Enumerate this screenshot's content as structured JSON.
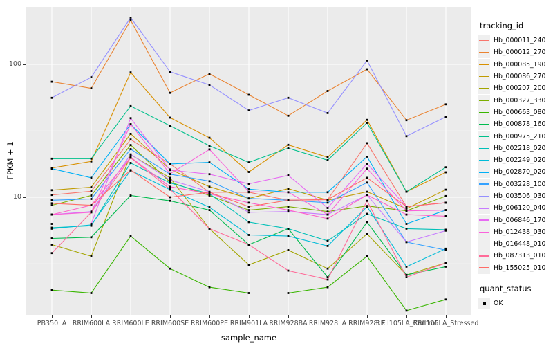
{
  "figure": {
    "background": "#FFFFFF",
    "panel_background": "#EBEBEB",
    "grid_color": "#FFFFFF",
    "tick_label_color": "#4D4D4D",
    "point_color": "#000000"
  },
  "chart_data": {
    "type": "line",
    "title": "",
    "xlabel": "sample_name",
    "ylabel": "FPKM + 1",
    "y_scale": "log10",
    "ylim": [
      1.3,
      270
    ],
    "grid": true,
    "legend_position": "right",
    "y_ticks": [
      {
        "label": "100",
        "value": 100
      },
      {
        "label": "10",
        "value": 10
      }
    ],
    "y_minor_breaks": [
      31.6,
      3.16
    ],
    "categories": [
      "PB350LA",
      "RRIM600LA",
      "RRIM600LE",
      "RRIM600SE",
      "RRIM600PE",
      "RRIM901LA",
      "RRIM928BA",
      "RRIM928LA",
      "RRIM928LE",
      "RRII105LA_Control",
      "RRII105LA_Stressed"
    ],
    "series": [
      {
        "name": "Hb_000011_240",
        "color": "#F8766D",
        "values": [
          10.4,
          11.1,
          27.2,
          17.8,
          10.9,
          10.9,
          9.5,
          9.6,
          25.5,
          8.5,
          9.1
        ]
      },
      {
        "name": "Hb_000012_270",
        "color": "#EA8331",
        "values": [
          74,
          66,
          215,
          61,
          85,
          59,
          41,
          63,
          92,
          38,
          50
        ]
      },
      {
        "name": "Hb_000085_190",
        "color": "#D89000",
        "values": [
          16.6,
          18.6,
          87,
          39.7,
          28,
          15.5,
          24.8,
          20,
          38.2,
          11,
          15.4
        ]
      },
      {
        "name": "Hb_000086_270",
        "color": "#C09B00",
        "values": [
          11.3,
          11.9,
          30,
          16.2,
          12,
          9.8,
          11.6,
          9.5,
          11,
          8.2,
          11.4
        ]
      },
      {
        "name": "Hb_000207_200",
        "color": "#A3A500",
        "values": [
          4.4,
          3.6,
          20.9,
          14,
          5.8,
          3.1,
          4,
          2.9,
          5.3,
          2.6,
          3.2
        ]
      },
      {
        "name": "Hb_000327_330",
        "color": "#7CAE00",
        "values": [
          8.7,
          10.3,
          24.7,
          13,
          10.3,
          8,
          8.5,
          7.8,
          8.6,
          7.9,
          10.2
        ]
      },
      {
        "name": "Hb_000663_080",
        "color": "#39B600",
        "values": [
          2,
          1.9,
          5.1,
          2.9,
          2.1,
          1.9,
          1.9,
          2.1,
          3.6,
          1.4,
          1.7
        ]
      },
      {
        "name": "Hb_000878_160",
        "color": "#00BB4E",
        "values": [
          4.9,
          5,
          10.3,
          9.4,
          8,
          4.4,
          5.8,
          2.5,
          6.5,
          2.6,
          3
        ]
      },
      {
        "name": "Hb_000975_210",
        "color": "#00C08B",
        "values": [
          19.5,
          19.5,
          48.5,
          34.5,
          24.4,
          18.3,
          23.4,
          19,
          36.3,
          11,
          16.8
        ]
      },
      {
        "name": "Hb_002218_020",
        "color": "#00C0B8",
        "values": [
          5.9,
          6.1,
          18.1,
          12.8,
          10.6,
          6.5,
          5.8,
          4.7,
          7.5,
          5.8,
          5.7
        ]
      },
      {
        "name": "Hb_002249_020",
        "color": "#00BCD8",
        "values": [
          5.8,
          6.2,
          15.9,
          11.4,
          8.4,
          5.2,
          5.1,
          4.3,
          8.5,
          3,
          4.1
        ]
      },
      {
        "name": "Hb_002870_020",
        "color": "#00B0F6",
        "values": [
          16.4,
          14,
          35.4,
          17.8,
          18.3,
          11.5,
          10.9,
          10.9,
          20.2,
          6.3,
          8
        ]
      },
      {
        "name": "Hb_003228_100",
        "color": "#35A2FF",
        "values": [
          9.5,
          9.7,
          23,
          14.9,
          13.2,
          9.8,
          9.5,
          9.1,
          12.9,
          4.6,
          4
        ]
      },
      {
        "name": "Hb_003506_030",
        "color": "#9590FF",
        "values": [
          56,
          80,
          225,
          88,
          70,
          45,
          56,
          43,
          107,
          28.8,
          40.3
        ]
      },
      {
        "name": "Hb_006120_040",
        "color": "#C77CFF",
        "values": [
          7.4,
          7.8,
          21,
          13.5,
          11,
          7.7,
          7.8,
          7.4,
          10.4,
          4.6,
          5.6
        ]
      },
      {
        "name": "Hb_006846_170",
        "color": "#E76BF3",
        "values": [
          6.3,
          6.3,
          39.4,
          16,
          14.9,
          12.6,
          14.6,
          8.3,
          17.9,
          8.5,
          9.1
        ]
      },
      {
        "name": "Hb_012438_030",
        "color": "#FA62DB",
        "values": [
          7.4,
          7.7,
          35.4,
          15,
          22.9,
          11,
          10.9,
          7.4,
          16.4,
          7.9,
          8
        ]
      },
      {
        "name": "Hb_016448_010",
        "color": "#FF61C9",
        "values": [
          7.4,
          8.7,
          20,
          12,
          10.6,
          9.1,
          8,
          6.9,
          10.4,
          7.4,
          7.2
        ]
      },
      {
        "name": "Hb_087313_010",
        "color": "#FF6A98",
        "values": [
          3.8,
          7.7,
          19.8,
          11.5,
          5.8,
          4.4,
          2.8,
          2.4,
          9.4,
          2.5,
          3.2
        ]
      },
      {
        "name": "Hb_155025_010",
        "color": "#FF6C67",
        "values": [
          9,
          8.7,
          16,
          10,
          10.9,
          8.5,
          9.5,
          9.6,
          14,
          8.5,
          9.1
        ]
      }
    ],
    "point_shape": "square",
    "legend": {
      "series_title": "tracking_id",
      "status_title": "quant_status",
      "status_items": [
        {
          "label": "OK",
          "shape": "square",
          "color": "#000000"
        }
      ]
    }
  }
}
